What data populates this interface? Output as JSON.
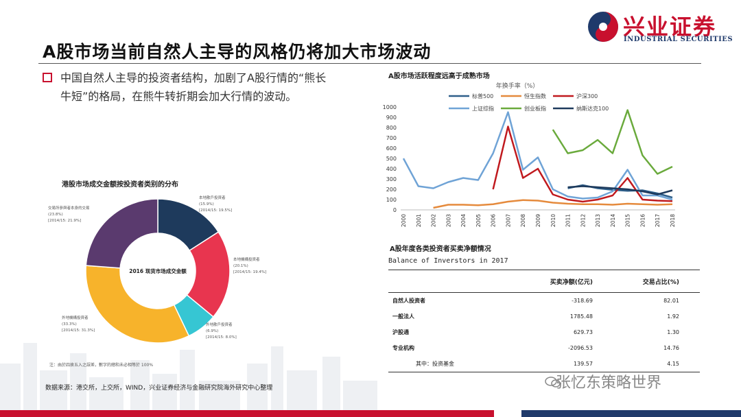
{
  "brand": {
    "name": "兴业证券",
    "sub": "INDUSTRIAL SECURITIES",
    "red": "#c8102e",
    "blue": "#1f3a6b"
  },
  "title": "A股市场当前自然人主导的风格仍将加大市场波动",
  "bullet": "中国自然人主导的投资者结构，加剧了A股行情的“熊长牛短”的格局，在熊牛转折期会加大行情的波动。",
  "pie": {
    "title": "港股市场成交金额按投资者类别的分布",
    "center": "2016 现货市场成交金额",
    "note": "注：由於四捨五入之誤差，數字的總和未必相等於 100%",
    "slices": [
      {
        "name": "本地散戶投資者",
        "pct": "(15.9%)",
        "prev": "[2014/15: 19.5%]",
        "value": 15.9,
        "color": "#1e3a5c"
      },
      {
        "name": "本地機構投資者",
        "pct": "(20.1%)",
        "prev": "[2014/15: 19.4%]",
        "value": 20.1,
        "color": "#e8354f"
      },
      {
        "name": "外地散戶投資者",
        "pct": "(6.9%)",
        "prev": "[2014/15: 8.0%]",
        "value": 6.9,
        "color": "#36c6d3"
      },
      {
        "name": "外地機構投資者",
        "pct": "(33.3%)",
        "prev": "[2014/15: 31.3%]",
        "value": 33.3,
        "color": "#f7b32b"
      },
      {
        "name": "交易所參與者本身的交易",
        "pct": "(23.8%)",
        "prev": "[2014/15: 21.9%]",
        "value": 23.8,
        "color": "#5a3a6e"
      }
    ]
  },
  "source": "数据来源：港交所，上交所，WIND，兴业证券经济与金融研究院海外研究中心整理",
  "chart_data": {
    "type": "line",
    "title": "A股市场活跃程度远高于成熟市场",
    "subtitle": "年换手率（%）",
    "x": [
      "2000",
      "2001",
      "2002",
      "2003",
      "2004",
      "2005",
      "2006",
      "2007",
      "2008",
      "2009",
      "2010",
      "2011",
      "2012",
      "2013",
      "2014",
      "2015",
      "2016",
      "2017",
      "2018"
    ],
    "ylim": [
      0,
      1000
    ],
    "yticks": [
      0,
      100,
      200,
      300,
      400,
      500,
      600,
      700,
      800,
      900,
      1000
    ],
    "legend": "top",
    "series": [
      {
        "name": "标普500",
        "color": "#2e5f8a",
        "values": [
          null,
          null,
          null,
          null,
          null,
          null,
          null,
          null,
          null,
          null,
          null,
          210,
          240,
          210,
          195,
          185,
          190,
          160,
          120
        ]
      },
      {
        "name": "恒生指数",
        "color": "#e58a3c",
        "values": [
          null,
          null,
          20,
          50,
          50,
          45,
          55,
          80,
          95,
          90,
          70,
          60,
          55,
          55,
          50,
          60,
          55,
          50,
          55
        ]
      },
      {
        "name": "沪深300",
        "color": "#c0191e",
        "values": [
          null,
          null,
          null,
          null,
          null,
          null,
          200,
          810,
          310,
          400,
          150,
          100,
          80,
          100,
          140,
          310,
          100,
          90,
          85
        ]
      },
      {
        "name": "上证综指",
        "color": "#6fa3d6",
        "values": [
          500,
          230,
          210,
          270,
          310,
          290,
          550,
          950,
          390,
          510,
          200,
          130,
          110,
          120,
          180,
          390,
          140,
          140,
          100
        ]
      },
      {
        "name": "创业板指",
        "color": "#6aaa3c",
        "values": [
          null,
          null,
          null,
          null,
          null,
          null,
          null,
          null,
          null,
          null,
          780,
          550,
          580,
          680,
          550,
          970,
          530,
          350,
          420
        ]
      },
      {
        "name": "纳斯达克100",
        "color": "#1e3a5c",
        "values": [
          null,
          null,
          null,
          null,
          null,
          null,
          null,
          null,
          null,
          null,
          null,
          220,
          230,
          220,
          210,
          200,
          180,
          150,
          190
        ]
      }
    ]
  },
  "table": {
    "title": "A股年度各类投资者买卖净额情况",
    "subtitle": "Balance of Inverstors in 2017",
    "headers": [
      "",
      "买卖净额(亿元)",
      "交易占比(%)"
    ],
    "rows": [
      {
        "name": "自然人投资者",
        "net": "-318.69",
        "share": "82.01"
      },
      {
        "name": "一般法人",
        "net": "1785.48",
        "share": "1.92"
      },
      {
        "name": "沪股通",
        "net": "629.73",
        "share": "1.30"
      },
      {
        "name": "专业机构",
        "net": "-2096.53",
        "share": "14.76"
      },
      {
        "name": "其中：投资基金",
        "net": "139.57",
        "share": "4.15"
      }
    ]
  },
  "watermark": "张忆东策略世界"
}
